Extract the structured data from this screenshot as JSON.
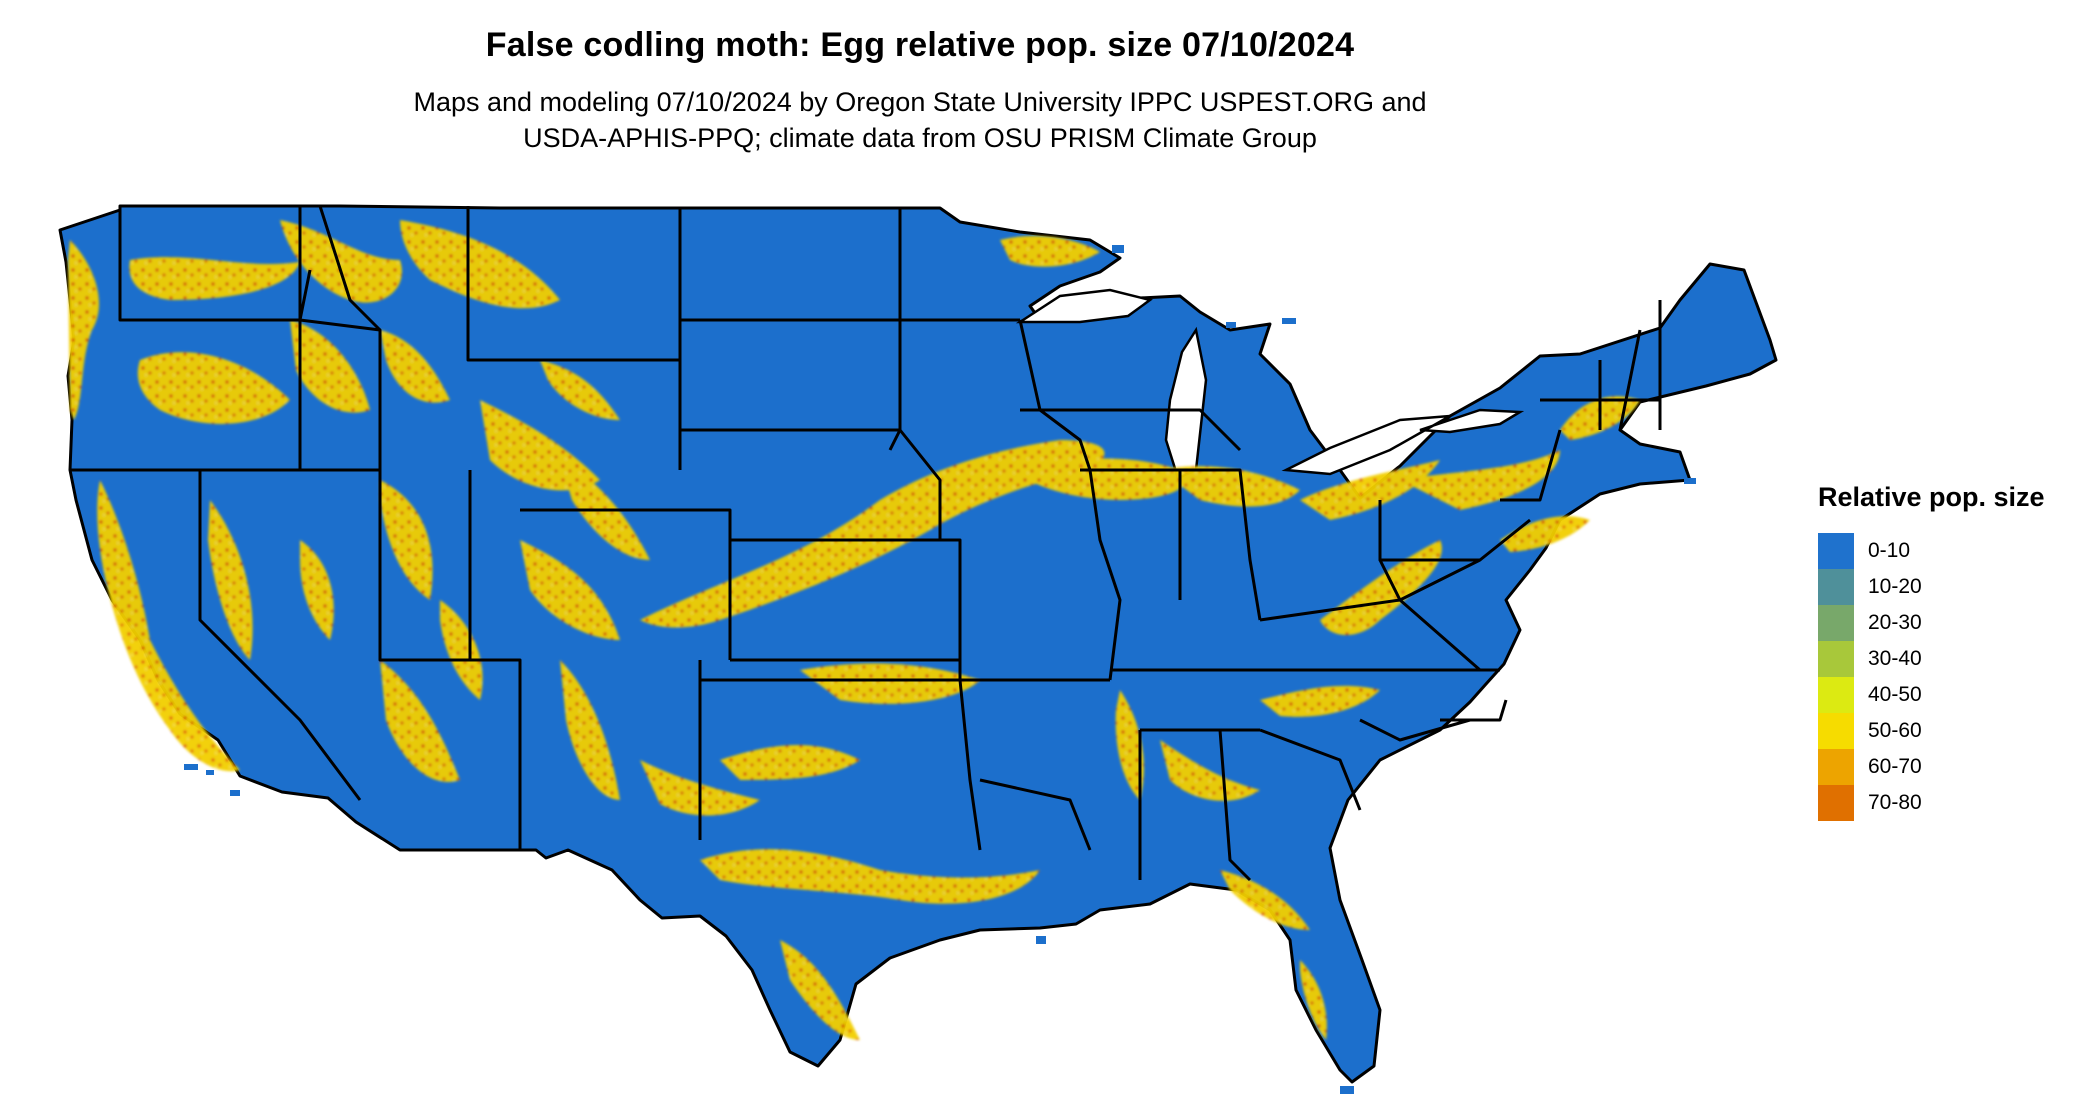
{
  "map": {
    "title": "False codling moth: Egg relative pop. size 07/10/2024",
    "subtitle_line1": "Maps and modeling 07/10/2024 by Oregon State University IPPC USPEST.ORG and",
    "subtitle_line2": "USDA-APHIS-PPQ; climate data from OSU PRISM Climate Group",
    "base_color": "#1c6fcc",
    "boundary_color": "#000000"
  },
  "legend": {
    "title": "Relative pop. size",
    "items": [
      {
        "label": "0-10",
        "color": "#1f72cd"
      },
      {
        "label": "10-20",
        "color": "#4f909a"
      },
      {
        "label": "20-30",
        "color": "#78a86a"
      },
      {
        "label": "30-40",
        "color": "#a8c83a"
      },
      {
        "label": "40-50",
        "color": "#dcea12"
      },
      {
        "label": "50-60",
        "color": "#f6dc00"
      },
      {
        "label": "60-70",
        "color": "#eda400"
      },
      {
        "label": "70-80",
        "color": "#e07000"
      }
    ]
  }
}
